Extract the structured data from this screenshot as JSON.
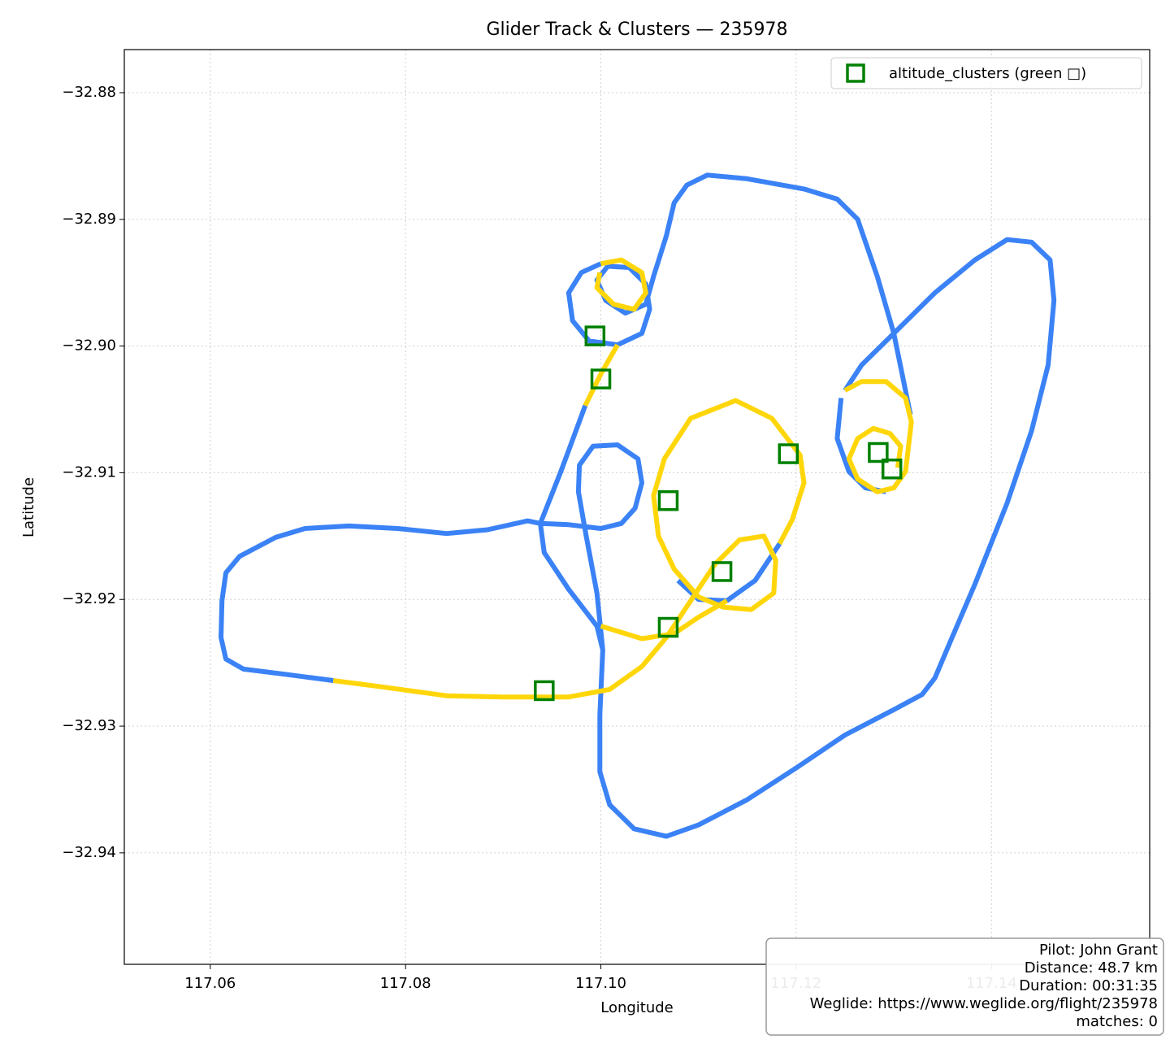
{
  "chart_data": {
    "type": "line",
    "title": "Glider Track & Clusters — 235978",
    "x_label": "Longitude",
    "y_label": "Latitude",
    "xlim": [
      117.0512,
      117.1562
    ],
    "ylim": [
      -32.9488,
      -32.8766
    ],
    "xticks": [
      117.06,
      117.08,
      {
        "value": 117.1,
        "label": "117.10"
      },
      117.12,
      117.14
    ],
    "yticks": [
      {
        "value": -32.88,
        "label": "−32.88"
      },
      {
        "value": -32.89,
        "label": "−32.89"
      },
      {
        "value": -32.9,
        "label": "−32.90"
      },
      {
        "value": -32.91,
        "label": "−32.91"
      },
      {
        "value": -32.92,
        "label": "−32.92"
      },
      {
        "value": -32.93,
        "label": "−32.93"
      },
      {
        "value": -32.94,
        "label": "−32.94"
      }
    ],
    "grid": true,
    "legend": "upper right",
    "series": [
      {
        "color": "#3b82f6",
        "x": [
          117.0726,
          117.0676,
          117.0634,
          117.0616,
          117.0611,
          117.0612,
          117.0616,
          117.063,
          117.0667,
          117.0697,
          117.0742,
          117.0792,
          117.0842,
          117.0884,
          117.0925,
          117.0938,
          117.0942,
          117.0967,
          117.0996,
          117.1002,
          117.0999,
          117.0999,
          117.1009,
          117.1034,
          117.1067,
          117.11,
          117.115,
          117.12,
          117.125,
          117.13,
          117.1329,
          117.1342,
          117.1358,
          117.1383,
          117.1416,
          117.1441,
          117.1458,
          117.1464,
          117.146,
          117.1441,
          117.1416,
          117.1383,
          117.1342,
          117.13,
          117.1267,
          117.125,
          null,
          117.1317,
          117.13,
          117.1283,
          117.1263,
          117.1242,
          117.1208,
          117.115,
          117.1109,
          117.1088,
          117.1075,
          117.1067,
          117.1054,
          117.1046,
          117.1025,
          117.1005,
          117.0996,
          117.1007,
          117.1029,
          117.1046,
          117.105,
          117.1042,
          117.1017,
          117.0988,
          117.0971,
          117.0967,
          117.098,
          117.1,
          null,
          117.0984,
          117.0959,
          117.0938,
          null,
          117.0938,
          117.0967,
          117.1,
          117.1021,
          117.1035,
          117.1042,
          117.1038,
          117.1017,
          117.0992,
          117.0978,
          117.0977,
          117.0985,
          117.0996,
          117.1002,
          null,
          117.1079,
          117.11,
          117.1129,
          117.1158,
          117.1183,
          null,
          117.1246,
          117.1242,
          117.1254,
          117.1271,
          117.1292
        ],
        "y": [
          -32.9264,
          -32.9259,
          -32.9255,
          -32.9247,
          -32.923,
          -32.9201,
          -32.9179,
          -32.9166,
          -32.9151,
          -32.9144,
          -32.9142,
          -32.9144,
          -32.9148,
          -32.9145,
          -32.9138,
          -32.914,
          -32.9163,
          -32.9192,
          -32.9221,
          -32.924,
          -32.9291,
          -32.9336,
          -32.9362,
          -32.9381,
          -32.9387,
          -32.9378,
          -32.9358,
          -32.9333,
          -32.9307,
          -32.9287,
          -32.9275,
          -32.9262,
          -32.9233,
          -32.9188,
          -32.9124,
          -32.9067,
          -32.9015,
          -32.8964,
          -32.8932,
          -32.8918,
          -32.8916,
          -32.8932,
          -32.8958,
          -32.899,
          -32.9015,
          -32.9035,
          null,
          -32.9054,
          -32.899,
          -32.8945,
          -32.89,
          -32.8884,
          -32.8876,
          -32.8868,
          -32.8865,
          -32.8873,
          -32.8887,
          -32.8913,
          -32.8945,
          -32.8967,
          -32.8974,
          -32.8964,
          -32.8948,
          -32.8937,
          -32.8938,
          -32.8951,
          -32.8971,
          -32.899,
          -32.8999,
          -32.8996,
          -32.898,
          -32.8958,
          -32.8942,
          -32.8935,
          null,
          -32.9047,
          -32.9099,
          -32.914,
          null,
          -32.914,
          -32.9141,
          -32.9144,
          -32.914,
          -32.9128,
          -32.9108,
          -32.9089,
          -32.9078,
          -32.9079,
          -32.9094,
          -32.9115,
          -32.915,
          -32.9195,
          -32.924,
          null,
          -32.9185,
          -32.92,
          -32.9201,
          -32.9185,
          -32.9156,
          null,
          -32.9041,
          -32.9073,
          -32.9099,
          -32.9112,
          -32.9115
        ]
      },
      {
        "color": "#ffd60a",
        "x": [
          117.0726,
          117.0776,
          117.0842,
          117.09,
          117.0967,
          117.1009,
          117.1042,
          117.1067,
          117.1092,
          117.1117,
          117.1142,
          117.1167,
          117.1179,
          117.1177,
          117.1154,
          117.1125,
          117.11,
          117.1075,
          117.1059,
          117.1054,
          117.1065,
          117.1092,
          117.1138,
          117.1175,
          117.1204,
          117.1208,
          117.1196,
          117.1183,
          null,
          117.1,
          117.1042,
          117.1075,
          117.11,
          117.1129,
          null,
          117.1,
          117.1021,
          117.1042,
          117.1046,
          117.1034,
          117.1013,
          117.0996,
          117.0999,
          null,
          117.1017,
          117.1,
          117.0984,
          null,
          117.125,
          117.1267,
          117.1292,
          117.1312,
          117.1318,
          117.1312,
          117.13,
          117.1283,
          117.1263,
          117.1254,
          117.1263,
          117.1279,
          117.1296,
          117.1307,
          117.1304
        ],
        "y": [
          -32.9264,
          -32.9269,
          -32.9276,
          -32.9277,
          -32.9277,
          -32.9271,
          -32.9253,
          -32.923,
          -32.9201,
          -32.9172,
          -32.9153,
          -32.915,
          -32.9169,
          -32.9195,
          -32.9208,
          -32.9206,
          -32.9198,
          -32.9176,
          -32.915,
          -32.9118,
          -32.9089,
          -32.9057,
          -32.9043,
          -32.9057,
          -32.9086,
          -32.9108,
          -32.9137,
          -32.9156,
          null,
          -32.9221,
          -32.9231,
          -32.9227,
          -32.9214,
          -32.9201,
          null,
          -32.8935,
          -32.8932,
          -32.8942,
          -32.8958,
          -32.8971,
          -32.8967,
          -32.8954,
          -32.8942,
          null,
          -32.8999,
          -32.9022,
          -32.9047,
          null,
          -32.9035,
          -32.9028,
          -32.9028,
          -32.9041,
          -32.906,
          -32.9099,
          -32.9112,
          -32.9115,
          -32.9105,
          -32.9089,
          -32.9073,
          -32.9065,
          -32.9069,
          -32.9079,
          -32.9096
        ]
      },
      {
        "name": "altitude_clusters (green □)",
        "color": "#008000",
        "marker": "square",
        "x": [
          117.0994,
          117.1,
          117.1069,
          117.1192,
          117.1124,
          117.1069,
          117.0942,
          117.1284,
          117.1298
        ],
        "y": [
          -32.8992,
          -32.9026,
          -32.9122,
          -32.9085,
          -32.9178,
          -32.9222,
          -32.9272,
          -32.9084,
          -32.9097
        ]
      }
    ],
    "info_box": [
      "Pilot: John Grant",
      "Distance: 48.7 km",
      "Duration: 00:31:35",
      "Weglide: https://www.weglide.org/flight/235978",
      "matches: 0"
    ]
  }
}
